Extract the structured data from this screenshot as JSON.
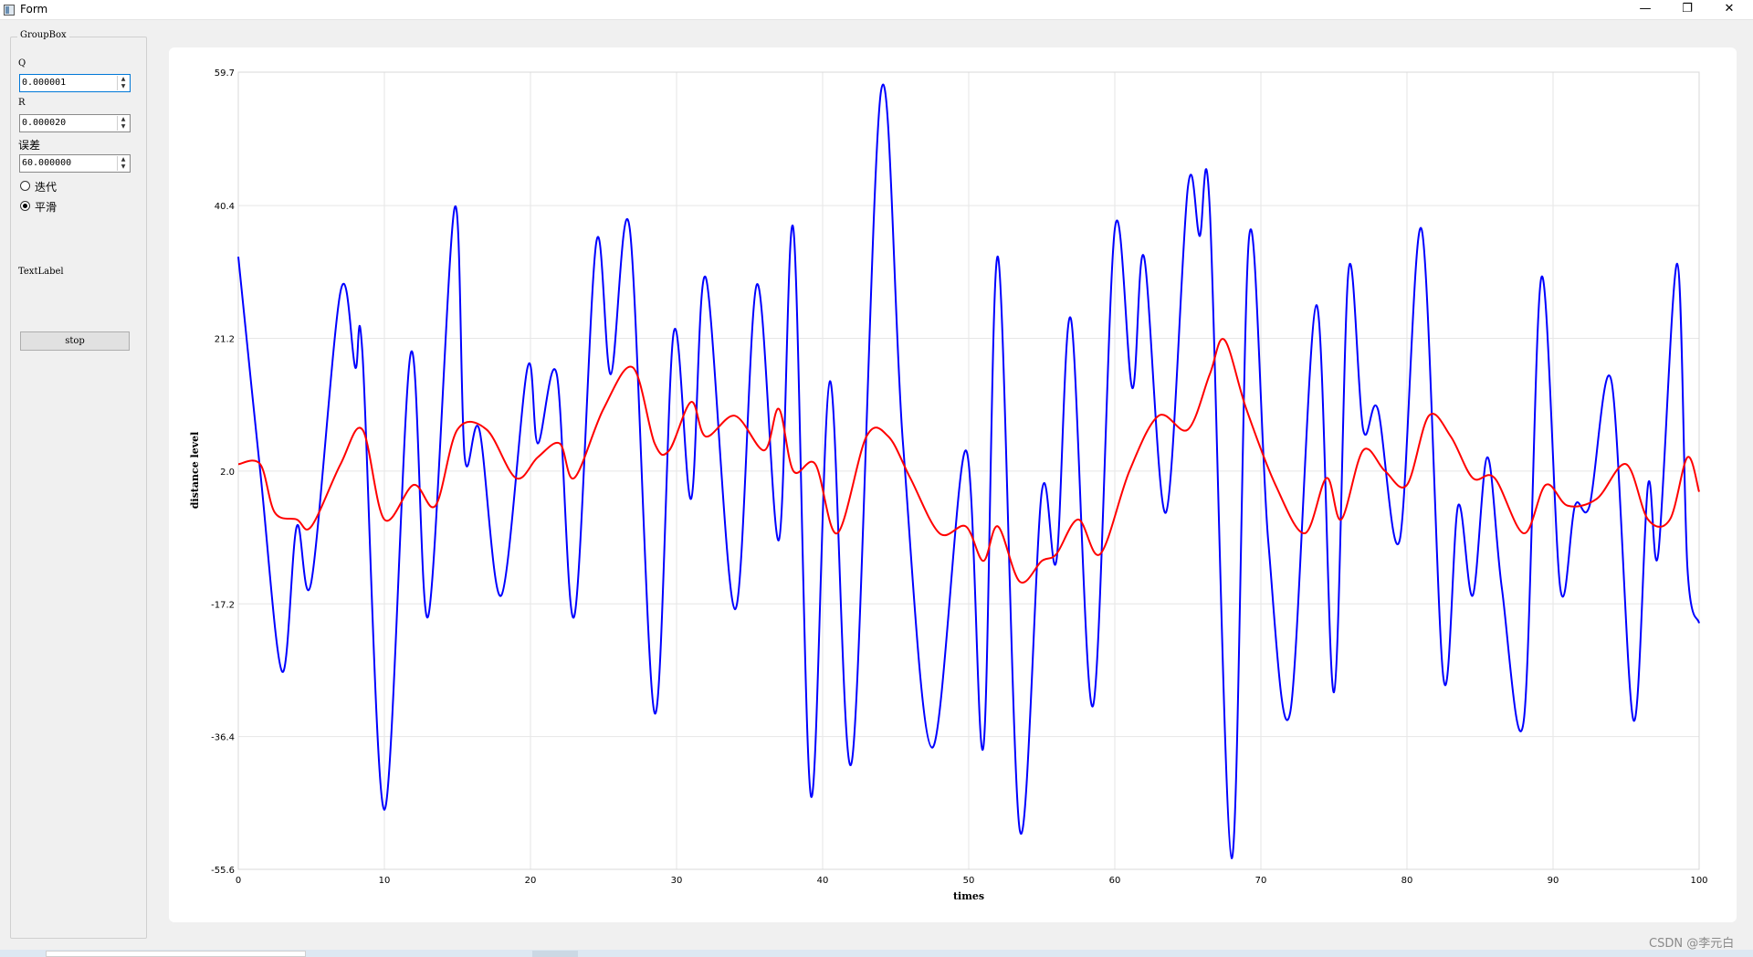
{
  "window": {
    "title": "Form",
    "minimize": "—",
    "restore": "❐",
    "close": "✕"
  },
  "groupbox": {
    "title": "GroupBox",
    "q_label": "Q",
    "q_value": "0.000001",
    "r_label": "R",
    "r_value": "0.000020",
    "err_label": "误差",
    "err_value": "60.000000",
    "radio_iterate": "迭代",
    "radio_smooth": "平滑",
    "selected_mode": "平滑",
    "text_label": "TextLabel",
    "stop_label": "stop"
  },
  "watermark": "CSDN @李元白",
  "chart_data": {
    "type": "line",
    "xlabel": "times",
    "ylabel": "distance level",
    "xlim": [
      0,
      100
    ],
    "ylim": [
      -55.6,
      59.7
    ],
    "x_ticks": [
      "0",
      "10",
      "20",
      "30",
      "40",
      "50",
      "60",
      "70",
      "80",
      "90",
      "100"
    ],
    "y_ticks": [
      "59.7",
      "40.4",
      "21.2",
      "2.0",
      "-17.2",
      "-36.4",
      "-55.6"
    ],
    "grid": true,
    "series": [
      {
        "color": "#0000ff",
        "x": [
          0,
          1.5,
          3,
          4,
          5,
          7,
          8,
          8.5,
          10,
          11.8,
          13,
          14.8,
          15.5,
          16.5,
          18,
          19.8,
          20.5,
          21.8,
          23,
          24.5,
          25.5,
          26.8,
          28.5,
          29.8,
          31,
          32,
          34,
          35.5,
          37,
          38,
          39.2,
          40.5,
          42,
          44,
          45.5,
          47.5,
          49.8,
          51,
          52,
          53.5,
          55,
          56,
          57,
          58.5,
          60,
          61.2,
          62,
          63.5,
          65,
          65.8,
          66.5,
          68,
          69.2,
          70.5,
          72,
          73.8,
          75,
          76,
          77,
          78,
          79.5,
          81,
          82.5,
          83.5,
          84.5,
          85.5,
          86.5,
          88,
          89.2,
          90.5,
          91.5,
          92.5,
          94,
          95.5,
          96.5,
          97.2,
          98.5,
          99.2,
          100
        ],
        "y": [
          33,
          2,
          -27,
          -6,
          -14,
          28,
          17,
          19,
          -47,
          19,
          -19,
          40,
          4,
          8,
          -16,
          17,
          6,
          16,
          -19,
          35,
          16,
          37,
          -33,
          22,
          -2,
          30,
          -18,
          29,
          -8,
          37,
          -45,
          15,
          -40,
          57,
          6,
          -38,
          5,
          -38,
          33,
          -50,
          -1,
          -11,
          24,
          -32,
          37,
          14,
          33,
          -4,
          43,
          36,
          40,
          -54,
          36,
          -8,
          -33,
          26,
          -30,
          31,
          8,
          11,
          -8,
          37,
          -28,
          -3,
          -16,
          4,
          -15,
          -34,
          30,
          -15,
          -3,
          -3,
          15,
          -34,
          0,
          -10,
          32,
          -12,
          -20
        ]
      },
      {
        "color": "#ff0000",
        "x": [
          0,
          1.5,
          2.5,
          4,
          5,
          7,
          8.5,
          10,
          12,
          13.5,
          15,
          17,
          19,
          20.5,
          22,
          23,
          25,
          27,
          28.5,
          29.5,
          31,
          32,
          34,
          36,
          37,
          38,
          39.5,
          41,
          43,
          44.5,
          46,
          48,
          49.8,
          51,
          52,
          53.5,
          55,
          56,
          57.5,
          59,
          61,
          63,
          65,
          66.5,
          67.5,
          69,
          71,
          73,
          74.5,
          75.5,
          77,
          78.5,
          80,
          81.5,
          83,
          84.5,
          86,
          88,
          89.5,
          91,
          93,
          95,
          96.5,
          98,
          99.2,
          100
        ],
        "y": [
          3,
          3,
          -4,
          -5,
          -6,
          3,
          8,
          -5,
          0,
          -3,
          8,
          8,
          1,
          4,
          6,
          1,
          11,
          17,
          6,
          5,
          12,
          7,
          10,
          5,
          11,
          2,
          3,
          -7,
          7,
          7,
          1,
          -7,
          -6,
          -11,
          -6,
          -14,
          -11,
          -10,
          -5,
          -10,
          2,
          10,
          8,
          16,
          21,
          11,
          0,
          -7,
          1,
          -5,
          5,
          2,
          0,
          10,
          7,
          1,
          1,
          -7,
          0,
          -3,
          -2,
          3,
          -5,
          -5,
          4,
          -1
        ]
      }
    ]
  }
}
